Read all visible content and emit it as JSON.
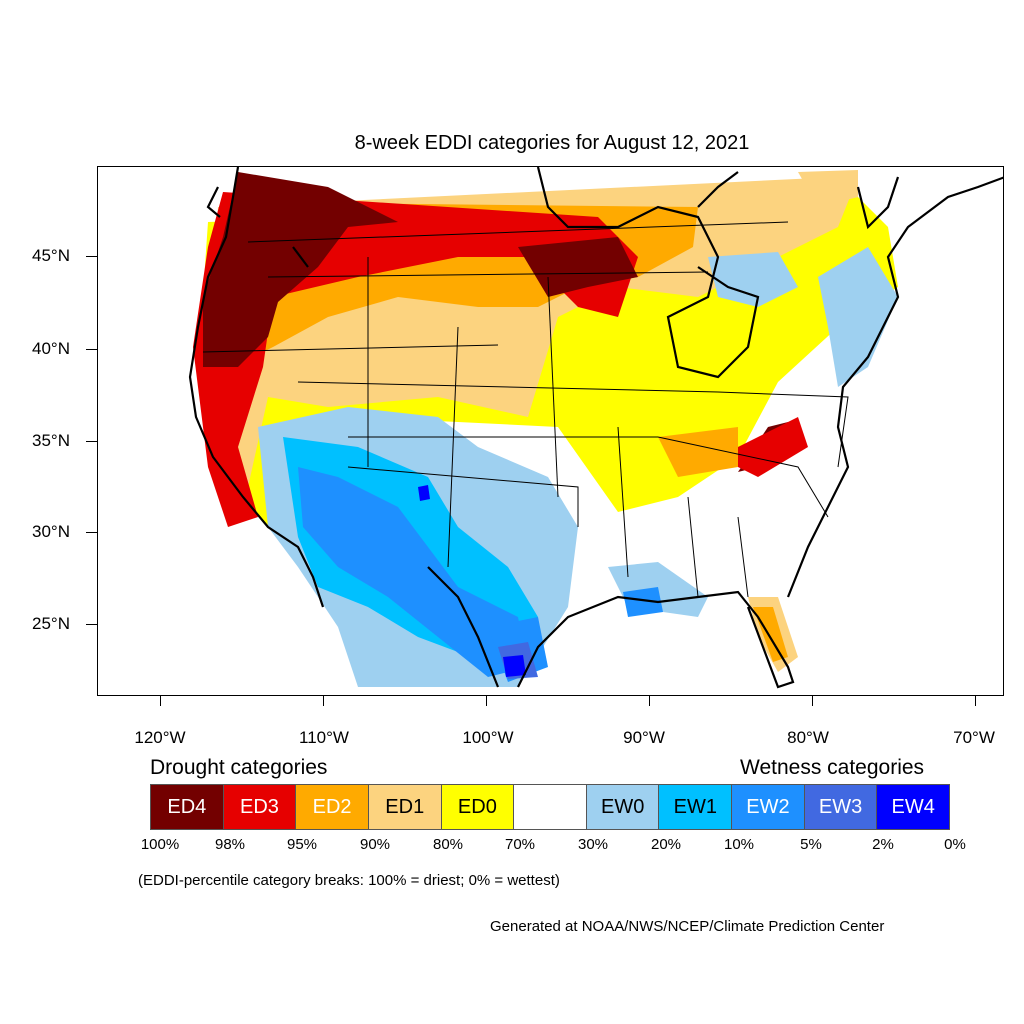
{
  "title": "8-week EDDI categories for August 12, 2021",
  "axes": {
    "y_labels": [
      "45°N",
      "40°N",
      "35°N",
      "30°N",
      "25°N"
    ],
    "x_labels": [
      "120°W",
      "110°W",
      "100°W",
      "90°W",
      "80°W",
      "70°W"
    ]
  },
  "legend": {
    "drought_heading": "Drought categories",
    "wetness_heading": "Wetness categories",
    "categories": [
      {
        "label": "ED4",
        "color": "#730000"
      },
      {
        "label": "ED3",
        "color": "#e60000"
      },
      {
        "label": "ED2",
        "color": "#ffaa00"
      },
      {
        "label": "ED1",
        "color": "#fcd37f"
      },
      {
        "label": "ED0",
        "color": "#ffff00"
      },
      {
        "label": "",
        "color": "#ffffff"
      },
      {
        "label": "EW0",
        "color": "#9ed0f0"
      },
      {
        "label": "EW1",
        "color": "#00c0ff"
      },
      {
        "label": "EW2",
        "color": "#1e90ff"
      },
      {
        "label": "EW3",
        "color": "#4169e1"
      },
      {
        "label": "EW4",
        "color": "#0000ff"
      }
    ],
    "breaks": [
      "100%",
      "98%",
      "95%",
      "90%",
      "80%",
      "70%",
      "30%",
      "20%",
      "10%",
      "5%",
      "2%",
      "0%"
    ]
  },
  "note": "(EDDI-percentile category breaks: 100% = driest; 0% = wettest)",
  "credit": "Generated at NOAA/NWS/NCEP/Climate Prediction Center"
}
